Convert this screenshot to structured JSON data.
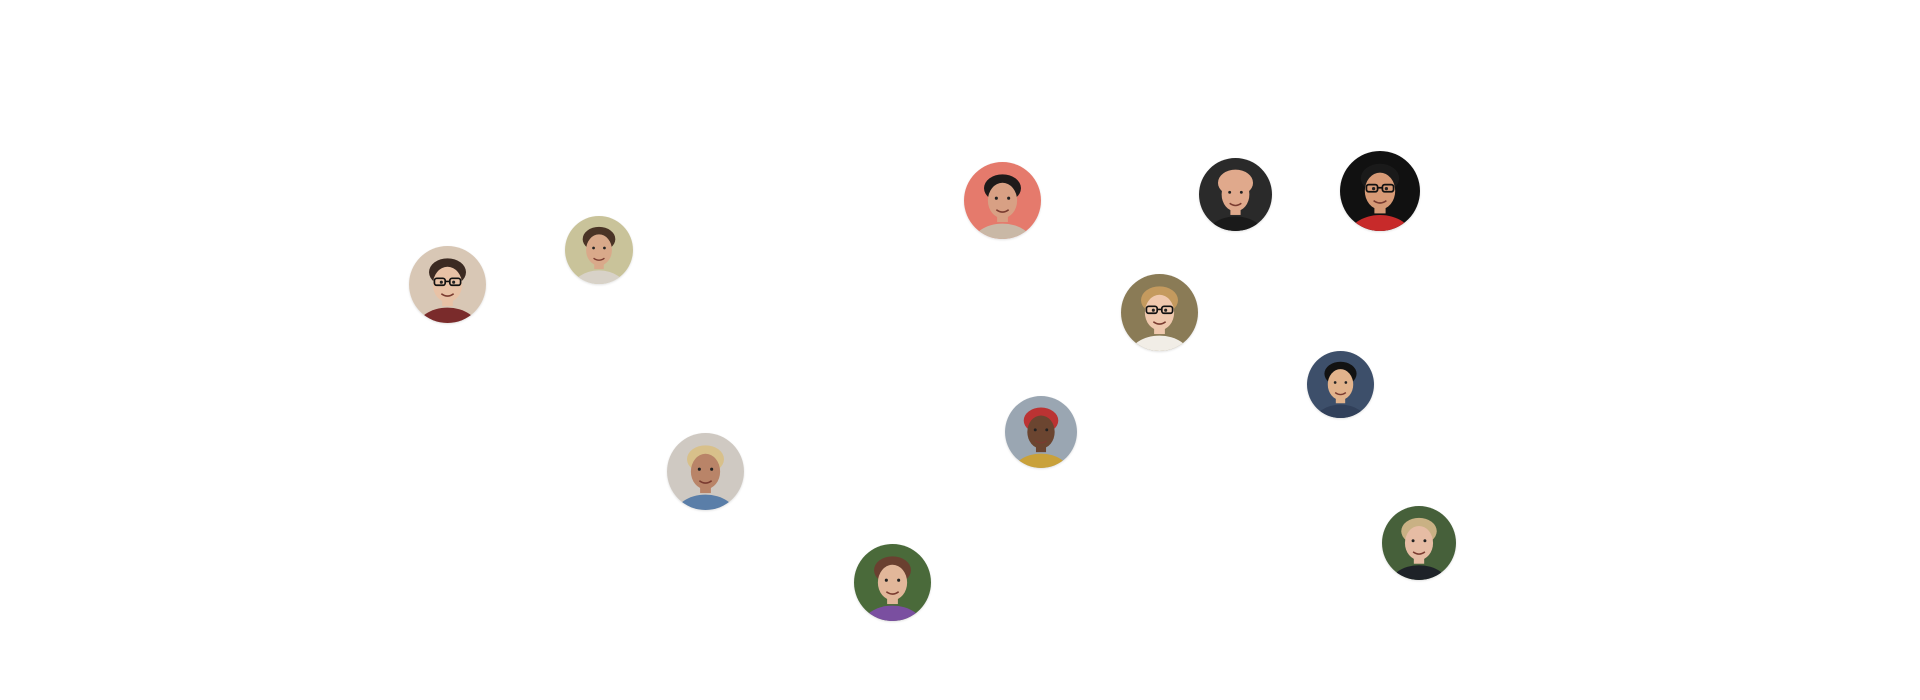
{
  "avatars": [
    {
      "name": "avatar-woman-glasses",
      "bg": "#d8c7b5",
      "skin": "#e8c2a6",
      "hair": "#3b2a22",
      "shirt": "#7a2b2b",
      "glasses": true
    },
    {
      "name": "avatar-man-smiling",
      "bg": "#c9c39a",
      "skin": "#d9a98a",
      "hair": "#4a3426",
      "shirt": "#d8d2c8",
      "glasses": false
    },
    {
      "name": "avatar-man-dark-hair",
      "bg": "#e57a6c",
      "skin": "#d8a084",
      "hair": "#1e1a1a",
      "shirt": "#c9b8a6",
      "glasses": false
    },
    {
      "name": "avatar-man-bald",
      "bg": "#2a2a2a",
      "skin": "#e0a98c",
      "hair": "#e0a98c",
      "shirt": "#1a1a1a",
      "glasses": false
    },
    {
      "name": "avatar-man-glasses",
      "bg": "#111111",
      "skin": "#d79a76",
      "hair": "#1a1a1a",
      "shirt": "#c72a2a",
      "glasses": true
    },
    {
      "name": "avatar-woman-blonde-glasses",
      "bg": "#8a7b56",
      "skin": "#efc8ae",
      "hair": "#c49a5e",
      "shirt": "#f1ede6",
      "glasses": true
    },
    {
      "name": "avatar-man-smiling-black-hair",
      "bg": "#3d4f6a",
      "skin": "#e2b38c",
      "hair": "#121212",
      "shirt": "#31405a",
      "glasses": false
    },
    {
      "name": "avatar-man-red-cap",
      "bg": "#9aa6b2",
      "skin": "#6b4530",
      "hair": "#b33",
      "shirt": "#c9a13a",
      "glasses": false
    },
    {
      "name": "avatar-man-hat",
      "bg": "#cfc9c2",
      "skin": "#b98468",
      "hair": "#d8c08a",
      "shirt": "#5a7ea8",
      "glasses": false
    },
    {
      "name": "avatar-woman-long-hair",
      "bg": "#4a6a3a",
      "skin": "#e2b79a",
      "hair": "#6a4030",
      "shirt": "#7a4fa0",
      "glasses": false
    },
    {
      "name": "avatar-man-blond",
      "bg": "#46603a",
      "skin": "#e6bca4",
      "hair": "#c9b184",
      "shirt": "#1e2228",
      "glasses": false
    }
  ]
}
